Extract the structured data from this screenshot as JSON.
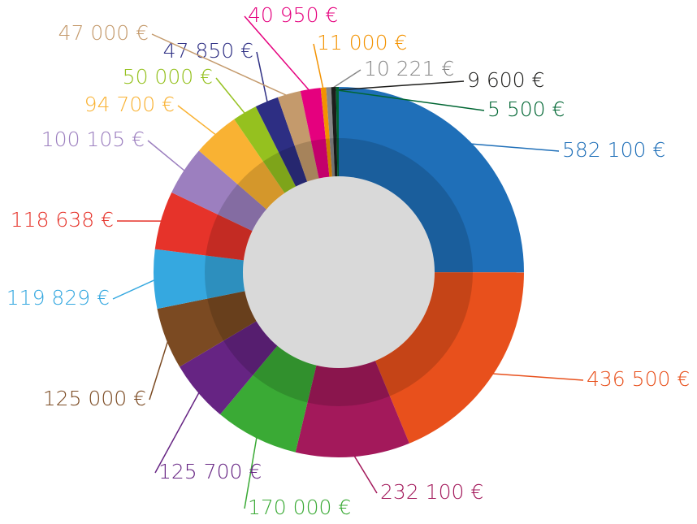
{
  "chart_data": {
    "type": "donut",
    "categories": null,
    "values": [
      582100,
      436500,
      232100,
      170000,
      125700,
      125000,
      119829,
      118638,
      100105,
      94700,
      50000,
      47850,
      47000,
      40950,
      11000,
      10221,
      9600,
      5500
    ],
    "value_labels": [
      "582 100 €",
      "436 500 €",
      "232 100 €",
      "170 000 €",
      "125 700 €",
      "125 000 €",
      "119 829 €",
      "118 638 €",
      "100 105 €",
      "94 700 €",
      "50 000 €",
      "47 850 €",
      "47 000 €",
      "40 950 €",
      "11 000 €",
      "10 221 €",
      "9 600 €",
      "5 500 €"
    ],
    "colors": [
      "#1f6fb8",
      "#e8501c",
      "#a3195b",
      "#3aaa35",
      "#662483",
      "#7b4a22",
      "#35a8e0",
      "#e6332a",
      "#9c7fbf",
      "#f9b233",
      "#95c11f",
      "#2d2e83",
      "#c49a6c",
      "#e5007e",
      "#f39200",
      "#878787",
      "#1d1d1b",
      "#006633"
    ]
  }
}
